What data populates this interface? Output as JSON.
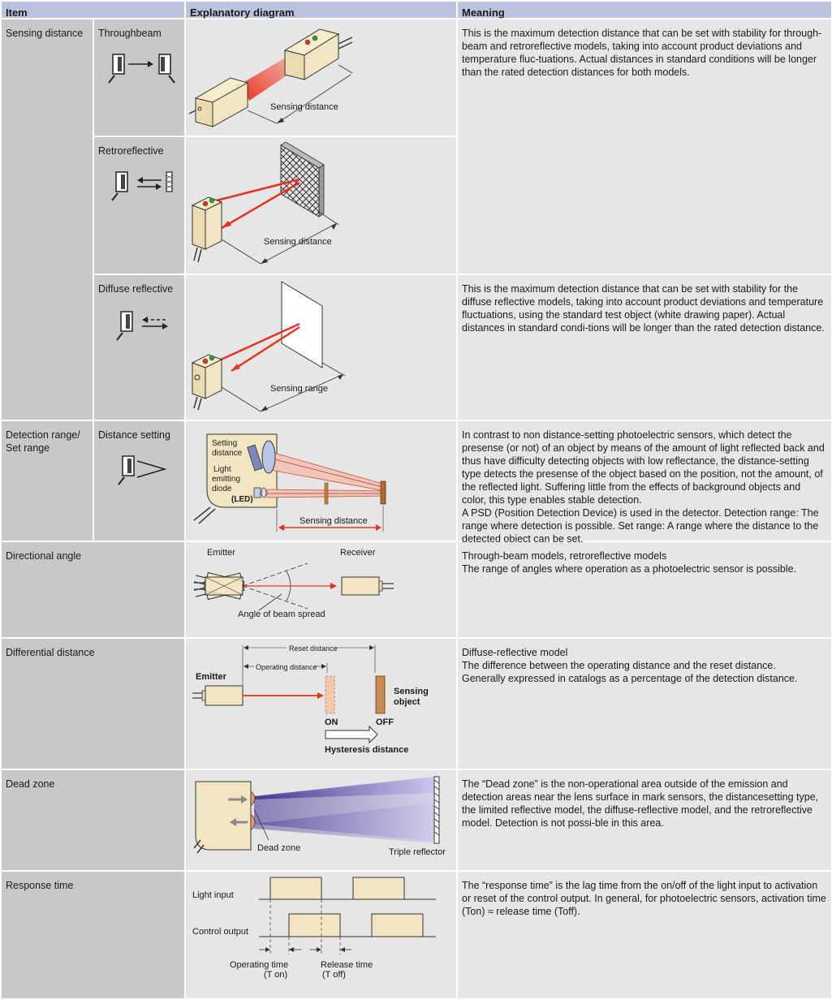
{
  "header": {
    "item": "Item",
    "diagram": "Explanatory diagram",
    "meaning": "Meaning"
  },
  "sensing_distance": {
    "label": "Sensing distance",
    "throughbeam": {
      "label": "Throughbeam",
      "diagram_label": "Sensing distance"
    },
    "retroreflective": {
      "label": "Retroreflective",
      "diagram_label": "Sensing distance"
    },
    "meaning_transmissive": "This is the maximum detection distance that can be set with stability for through-beam and retroreflective models, taking into account product deviations and temperature fluc-tuations. Actual distances in standard conditions will be longer than the rated detection distances for both models.",
    "diffuse": {
      "label": "Diffuse reflective",
      "diagram_label": "Sensing range",
      "meaning": "This is the maximum detection distance that can be set with stability for the diffuse reflective models, taking into account product deviations and temperature fluctuations, using the standard test object (white drawing paper). Actual distances in standard condi-tions will be longer than the rated detection distance."
    }
  },
  "detection_range": {
    "label": "Detection range/ Set range",
    "sub_label": "Distance setting",
    "diagram": {
      "setting_distance": [
        "Setting",
        "distance"
      ],
      "led": [
        "Light",
        "emitting",
        "diode"
      ],
      "led_abbr": "(LED)",
      "sensing_distance": "Sensing distance"
    },
    "meaning": [
      "In contrast to non distance-setting photoelectric sensors, which detect the presense (or not) of an object by means of the amount of light reflected back and thus have difficulty detecting objects with low reflectance, the distance-setting type detects the presense of the object based on the position, not the amount, of the reflected light. Suffering little from the effects of background objects and color, this type enables stable detection.",
      "A PSD (Position Detection Device) is used in the detector. Detection range: The range where detection is possible. Set range: A range where the distance to the detected object can be set."
    ]
  },
  "directional_angle": {
    "label": "Directional angle",
    "diagram": {
      "emitter": "Emitter",
      "receiver": "Receiver",
      "angle": "Angle of beam spread"
    },
    "meaning": [
      "Through-beam models, retroreflective models",
      "The range of angles where operation as a photoelectric sensor is possible."
    ]
  },
  "differential_distance": {
    "label": "Differential distance",
    "diagram": {
      "reset_distance": "Reset distance",
      "operating_distance": "Operating distance",
      "emitter": "Emitter",
      "sensing_object": [
        "Sensing",
        "object"
      ],
      "on": "ON",
      "off": "OFF",
      "hysteresis": "Hysteresis distance"
    },
    "meaning": [
      "Diffuse-reflective model",
      "The difference between the operating distance and the reset distance.",
      "Generally expressed in catalogs as a percentage of the detection distance."
    ]
  },
  "dead_zone": {
    "label": "Dead zone",
    "diagram": {
      "dead_zone": "Dead zone",
      "reflector": "Triple reflector"
    },
    "meaning": "The “Dead zone” is the non-operational area outside of the emission and detection areas near the lens surface in mark sensors, the distancesetting type, the limited reflective model, the diffuse-reflective model, and the retroreflective model. Detection is not possi-ble in this area."
  },
  "response_time": {
    "label": "Response time",
    "diagram": {
      "light_input": "Light input",
      "control_output": "Control output",
      "operating_time": [
        "Operating time",
        "(T on)"
      ],
      "release_time": [
        "Release time",
        "(T off)"
      ]
    },
    "meaning": "The “response time” is the lag time from the on/off of the light input to activation or reset of the control output. In general, for photoelectric sensors, activation time (Ton) ≈ release time (Toff)."
  },
  "colors": {
    "header": "#b9c3de",
    "item_cell": "#c8c8c8",
    "content_cell": "#e6e6e6",
    "beam_red": "#e8321e",
    "sensor_body": "#f2e6c2"
  }
}
